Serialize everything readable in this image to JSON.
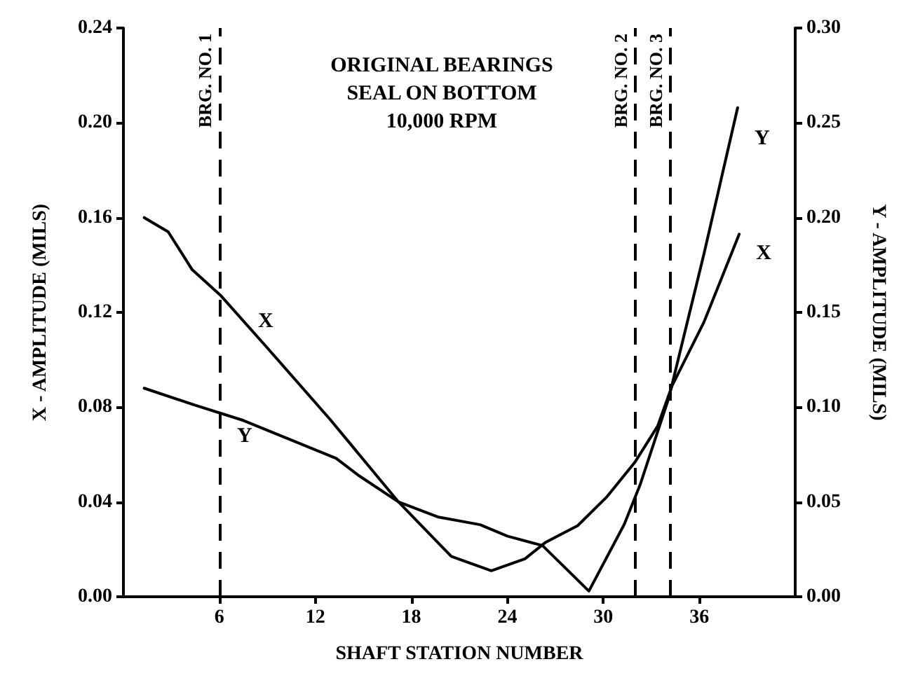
{
  "chart_data": {
    "type": "line",
    "title": "ORIGINAL BEARINGS\nSEAL ON BOTTOM\n10,000 RPM",
    "xlabel": "SHAFT STATION NUMBER",
    "ylabel": "X - AMPLITUDE (MILS)",
    "y2label": "Y - AMPLITUDE (MILS)",
    "xlim": [
      0,
      42
    ],
    "xticks": [
      6,
      12,
      18,
      24,
      30,
      36
    ],
    "ylim": [
      0,
      0.24
    ],
    "yticks": [
      {
        "value": 0,
        "label": "0.00"
      },
      {
        "value": 0.04,
        "label": "0.04"
      },
      {
        "value": 0.08,
        "label": "0.08"
      },
      {
        "value": 0.12,
        "label": "0.12"
      },
      {
        "value": 0.16,
        "label": "0.16"
      },
      {
        "value": 0.2,
        "label": "0.20"
      },
      {
        "value": 0.24,
        "label": "0.24"
      }
    ],
    "y2lim": [
      0,
      0.3
    ],
    "y2ticks": [
      {
        "value": 0,
        "label": "0.00"
      },
      {
        "value": 0.05,
        "label": "0.05"
      },
      {
        "value": 0.1,
        "label": "0.10"
      },
      {
        "value": 0.15,
        "label": "0.15"
      },
      {
        "value": 0.2,
        "label": "0.20"
      },
      {
        "value": 0.25,
        "label": "0.25"
      },
      {
        "value": 0.3,
        "label": "0.30"
      }
    ],
    "series": [
      {
        "name": "X",
        "color": "#000000",
        "x": [
          1.3,
          2.8,
          4.3,
          6.1,
          9,
          12.9,
          17.2,
          20.5,
          23,
          25.1,
          26.4,
          28.4,
          30.2,
          32,
          33.4,
          34.3,
          36.3,
          38.5
        ],
        "values": [
          0.16,
          0.154,
          0.138,
          0.127,
          0.105,
          0.075,
          0.04,
          0.017,
          0.011,
          0.016,
          0.023,
          0.03,
          0.042,
          0.057,
          0.072,
          0.089,
          0.116,
          0.153
        ]
      },
      {
        "name": "Y",
        "color": "#000000",
        "axis": "y2",
        "x": [
          1.3,
          4.5,
          7.5,
          10.4,
          13.3,
          14.7,
          17.2,
          19.7,
          22.3,
          24,
          26.2,
          29.1,
          31.3,
          32.3,
          34.1,
          36.3,
          38.4
        ],
        "values": [
          0.11,
          0.101,
          0.093,
          0.083,
          0.073,
          0.064,
          0.05,
          0.042,
          0.038,
          0.032,
          0.027,
          0.003,
          0.038,
          0.059,
          0.105,
          0.181,
          0.258
        ]
      }
    ],
    "annotations": [
      "X",
      "Y"
    ],
    "ref_lines": [
      {
        "axis": "x",
        "value": 6,
        "label": "BRG. NO. 1",
        "line_style": "dashed"
      },
      {
        "axis": "x",
        "value": 32,
        "label": "BRG. NO. 2",
        "line_style": "dashed"
      },
      {
        "axis": "x",
        "value": 34.2,
        "label": "BRG. NO. 3",
        "line_style": "dashed"
      }
    ],
    "grid": false,
    "legend": false,
    "marker": "none",
    "line_style": "solid"
  }
}
